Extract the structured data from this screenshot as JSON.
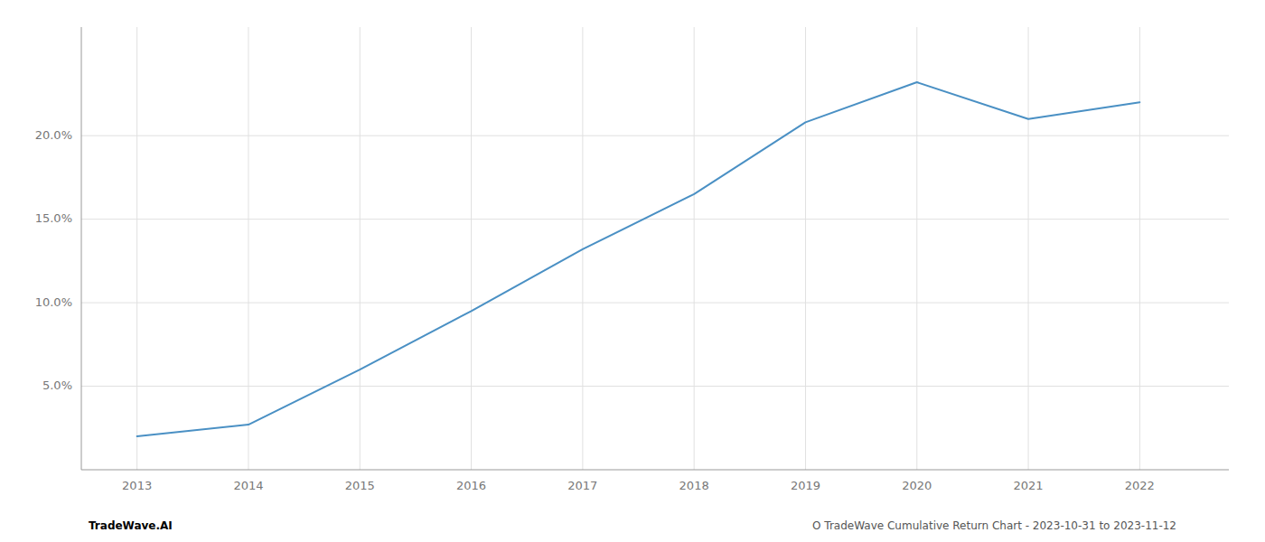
{
  "chart_data": {
    "type": "line",
    "x": [
      2013,
      2014,
      2015,
      2016,
      2017,
      2018,
      2019,
      2020,
      2021,
      2022
    ],
    "values": [
      0.02,
      0.027,
      0.06,
      0.095,
      0.132,
      0.165,
      0.208,
      0.232,
      0.21,
      0.22
    ],
    "color": "#4a90c4",
    "xlim": [
      2012.5,
      2022.8
    ],
    "xticks": [
      2013,
      2014,
      2015,
      2016,
      2017,
      2018,
      2019,
      2020,
      2021,
      2022
    ],
    "ylim": [
      0.0,
      0.265
    ],
    "yticks": [
      {
        "value": 0.05,
        "label": "5.0%"
      },
      {
        "value": 0.1,
        "label": "10.0%"
      },
      {
        "value": 0.15,
        "label": "15.0%"
      },
      {
        "value": 0.2,
        "label": "20.0%"
      }
    ],
    "grid": true,
    "annotations": [
      "TradeWave.AI",
      "O TradeWave Cumulative Return Chart - 2023-10-31 to 2023-11-12"
    ]
  }
}
